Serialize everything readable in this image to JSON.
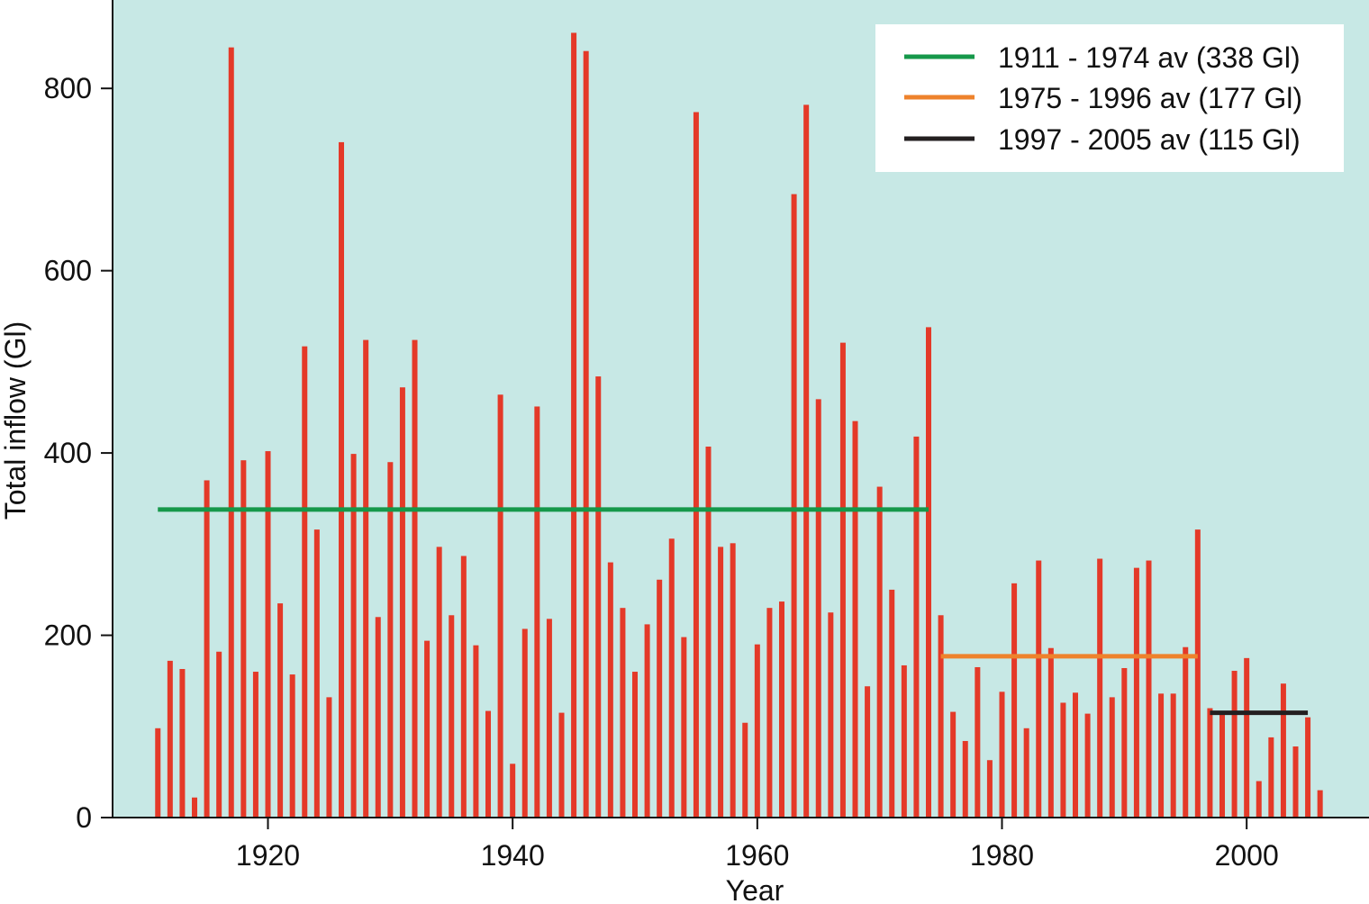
{
  "chart_data": {
    "type": "bar",
    "title": "",
    "xlabel": "Year",
    "ylabel": "Total inflow (Gl)",
    "xlim": [
      1907.3,
      2010
    ],
    "ylim": [
      0,
      897
    ],
    "xticks": [
      1920,
      1940,
      1960,
      1980,
      2000
    ],
    "yticks": [
      0,
      200,
      400,
      600,
      800
    ],
    "grid": false,
    "legend_position": "top-right",
    "background_color": "#c7e8e5",
    "series": [
      {
        "color": "#e43928",
        "x": [
          1911,
          1912,
          1913,
          1914,
          1915,
          1916,
          1917,
          1918,
          1919,
          1920,
          1921,
          1922,
          1923,
          1924,
          1925,
          1926,
          1927,
          1928,
          1929,
          1930,
          1931,
          1932,
          1933,
          1934,
          1935,
          1936,
          1937,
          1938,
          1939,
          1940,
          1941,
          1942,
          1943,
          1944,
          1945,
          1946,
          1947,
          1948,
          1949,
          1950,
          1951,
          1952,
          1953,
          1954,
          1955,
          1956,
          1957,
          1958,
          1959,
          1960,
          1961,
          1962,
          1963,
          1964,
          1965,
          1966,
          1967,
          1968,
          1969,
          1970,
          1971,
          1972,
          1973,
          1974,
          1975,
          1976,
          1977,
          1978,
          1979,
          1980,
          1981,
          1982,
          1983,
          1984,
          1985,
          1986,
          1987,
          1988,
          1989,
          1990,
          1991,
          1992,
          1993,
          1994,
          1995,
          1996,
          1997,
          1998,
          1999,
          2000,
          2001,
          2002,
          2003,
          2004,
          2005,
          2006
        ],
        "values": [
          98,
          172,
          163,
          22,
          370,
          182,
          845,
          392,
          160,
          402,
          235,
          157,
          517,
          316,
          132,
          741,
          399,
          524,
          220,
          390,
          472,
          524,
          194,
          297,
          222,
          287,
          189,
          117,
          464,
          59,
          207,
          451,
          218,
          115,
          861,
          841,
          484,
          280,
          230,
          160,
          212,
          261,
          306,
          198,
          774,
          407,
          297,
          301,
          104,
          190,
          230,
          237,
          684,
          782,
          459,
          225,
          521,
          435,
          144,
          363,
          250,
          167,
          418,
          538,
          222,
          116,
          84,
          165,
          63,
          138,
          257,
          98,
          282,
          186,
          126,
          137,
          114,
          284,
          132,
          164,
          274,
          282,
          136,
          136,
          187,
          316,
          120,
          115,
          161,
          175,
          40,
          88,
          147,
          78,
          110,
          30
        ]
      }
    ],
    "reference_lines": [
      {
        "label": "1911 - 1974 av (338 Gl)",
        "x_start": 1911,
        "x_end": 1974,
        "y": 338,
        "color": "#16984a"
      },
      {
        "label": "1975 - 1996 av (177 Gl)",
        "x_start": 1975,
        "x_end": 1996,
        "y": 177,
        "color": "#ee822c"
      },
      {
        "label": "1997 - 2005 av (115 Gl)",
        "x_start": 1997,
        "x_end": 2005,
        "y": 115,
        "color": "#231f20"
      }
    ]
  }
}
